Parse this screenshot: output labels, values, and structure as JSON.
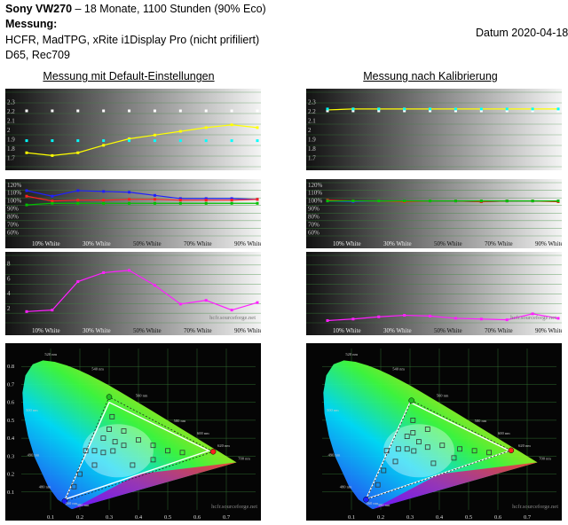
{
  "header": {
    "title_bold": "Sony VW270",
    "title_rest": " – 18 Monate, 1100 Stunden (90% Eco)",
    "subtitle": "Messung:",
    "line1": "HCFR, MadTPG, xRite i1Display Pro (nicht prifiliert)",
    "line2": "D65, Rec709",
    "date": "Datum 2020-04-18",
    "left_heading": "Messung mit Default-Einstellungen",
    "right_heading": "Messung nach Kalibrierung"
  },
  "colors": {
    "gamma": "#ffff00",
    "white_ref": "#ffffff",
    "cyan_ref": "#00ffff",
    "red": "#ff2020",
    "green": "#00c000",
    "blue": "#2020ff",
    "magenta": "#ff20ff",
    "grid": "#2e8b2e",
    "gamut": "#ffffff",
    "bg_dark": "#0a0a0a"
  },
  "chart_data": [
    {
      "id": "gamma-default",
      "type": "line",
      "x": [
        0,
        10,
        20,
        30,
        40,
        50,
        60,
        70,
        80,
        90
      ],
      "ylim": [
        1.6,
        2.4
      ],
      "yticks": [
        "1.7",
        "1.8",
        "1.9",
        "2",
        "2.1",
        "2.2",
        "2.3"
      ],
      "series": [
        {
          "color": "#ffff00",
          "values": [
            1.75,
            1.72,
            1.75,
            1.83,
            1.9,
            1.94,
            1.98,
            2.02,
            2.05,
            2.02
          ]
        },
        {
          "color": "#ffffff",
          "values": [
            2.2,
            2.2,
            2.2,
            2.2,
            2.2,
            2.2,
            2.2,
            2.2,
            2.2,
            2.2
          ],
          "dashed": true
        },
        {
          "color": "#00ffff",
          "values": [
            1.88,
            1.88,
            1.88,
            1.88,
            1.88,
            1.88,
            1.88,
            1.88,
            1.88,
            1.88
          ],
          "dashed": true
        }
      ]
    },
    {
      "id": "rgb-default",
      "type": "line",
      "x": [
        0,
        10,
        20,
        30,
        40,
        50,
        60,
        70,
        80,
        90
      ],
      "ylim": [
        55,
        122
      ],
      "yticks": [
        "60%",
        "70%",
        "80%",
        "90%",
        "100%",
        "110%",
        "120%"
      ],
      "xticks": [
        "10% White",
        "30% White",
        "50% White",
        "70% White",
        "90% White"
      ],
      "series": [
        {
          "color": "#2020ff",
          "values": [
            112,
            105,
            112,
            111,
            110,
            106,
            102,
            102,
            102,
            101
          ]
        },
        {
          "color": "#ff2020",
          "values": [
            105,
            99,
            100,
            100,
            101,
            101,
            100,
            100,
            100,
            101
          ]
        },
        {
          "color": "#00c000",
          "values": [
            94,
            96,
            96,
            96,
            96,
            96,
            96,
            96,
            96,
            96
          ]
        }
      ]
    },
    {
      "id": "deltae-default",
      "type": "line",
      "x": [
        0,
        10,
        20,
        30,
        40,
        50,
        60,
        70,
        80,
        90
      ],
      "ylim": [
        0,
        9
      ],
      "yticks": [
        "2",
        "4",
        "6",
        "8"
      ],
      "xticks": [
        "10% White",
        "30% White",
        "50% White",
        "70% White",
        "90% White"
      ],
      "series": [
        {
          "color": "#ff20ff",
          "values": [
            1.5,
            1.7,
            5.5,
            6.7,
            7,
            5,
            2.5,
            3,
            1.7,
            2.7
          ]
        }
      ],
      "watermark": "hcfr.sourceforge.net"
    },
    {
      "id": "gamma-calibrated",
      "type": "line",
      "x": [
        0,
        10,
        20,
        30,
        40,
        50,
        60,
        70,
        80,
        90
      ],
      "ylim": [
        1.6,
        2.4
      ],
      "yticks": [
        "1.7",
        "1.8",
        "1.9",
        "2",
        "2.1",
        "2.2",
        "2.3"
      ],
      "series": [
        {
          "color": "#ffff00",
          "values": [
            2.21,
            2.22,
            2.22,
            2.22,
            2.22,
            2.22,
            2.22,
            2.22,
            2.22,
            2.22
          ]
        },
        {
          "color": "#ffffff",
          "values": [
            2.2,
            2.2,
            2.2,
            2.2,
            2.2,
            2.2,
            2.2,
            2.2,
            2.2,
            2.2
          ],
          "dashed": true
        },
        {
          "color": "#00ffff",
          "values": [
            2.22,
            2.22,
            2.22,
            2.22,
            2.22,
            2.22,
            2.22,
            2.22,
            2.22,
            2.22
          ],
          "dashed": true
        }
      ]
    },
    {
      "id": "rgb-calibrated",
      "type": "line",
      "x": [
        0,
        10,
        20,
        30,
        40,
        50,
        60,
        70,
        80,
        90
      ],
      "ylim": [
        55,
        122
      ],
      "yticks": [
        "60%",
        "70%",
        "80%",
        "90%",
        "100%",
        "110%",
        "120%"
      ],
      "xticks": [
        "10% White",
        "30% White",
        "50% White",
        "70% White",
        "90% White"
      ],
      "series": [
        {
          "color": "#2020ff",
          "values": [
            99,
            98,
            99,
            99,
            99,
            99,
            98,
            99,
            99,
            99
          ]
        },
        {
          "color": "#ff2020",
          "values": [
            100,
            99,
            99,
            98,
            99,
            99,
            98,
            99,
            99,
            98
          ]
        },
        {
          "color": "#00c000",
          "values": [
            99,
            99,
            99,
            99,
            99,
            99,
            99,
            99,
            99,
            99
          ]
        }
      ]
    },
    {
      "id": "deltae-calibrated",
      "type": "line",
      "x": [
        0,
        10,
        20,
        30,
        40,
        50,
        60,
        70,
        80,
        90
      ],
      "ylim": [
        0,
        9
      ],
      "yticks": [],
      "xticks": [
        "10% White",
        "30% White",
        "50% White",
        "70% White",
        "90% White"
      ],
      "series": [
        {
          "color": "#ff20ff",
          "values": [
            0.3,
            0.5,
            0.8,
            1.0,
            0.9,
            0.6,
            0.5,
            0.4,
            1.2,
            0.6
          ]
        }
      ],
      "watermark": "hcfr.sourceforge.net"
    },
    {
      "id": "cie-default",
      "type": "scatter",
      "xlim": [
        0,
        0.8
      ],
      "ylim": [
        0,
        0.9
      ],
      "xticks": [
        "0.1",
        "0.2",
        "0.3",
        "0.4",
        "0.5",
        "0.6",
        "0.7"
      ],
      "yticks": [
        "0.1",
        "0.2",
        "0.3",
        "0.4",
        "0.5",
        "0.6",
        "0.7",
        "0.8"
      ],
      "wavelengths": [
        "380 nm",
        "460 nm",
        "480 nm",
        "490 nm",
        "500 nm",
        "520 nm",
        "540 nm",
        "560 nm",
        "580 nm",
        "600 nm",
        "620 nm",
        "700 nm"
      ],
      "gamut": [
        [
          0.64,
          0.33
        ],
        [
          0.3,
          0.6
        ],
        [
          0.15,
          0.06
        ]
      ],
      "measured_gamut": [
        [
          0.655,
          0.325
        ],
        [
          0.3,
          0.63
        ],
        [
          0.148,
          0.048
        ]
      ],
      "points": [
        [
          0.313,
          0.329
        ],
        [
          0.28,
          0.32
        ],
        [
          0.25,
          0.33
        ],
        [
          0.22,
          0.33
        ],
        [
          0.35,
          0.36
        ],
        [
          0.4,
          0.39
        ],
        [
          0.45,
          0.36
        ],
        [
          0.5,
          0.33
        ],
        [
          0.55,
          0.32
        ],
        [
          0.3,
          0.45
        ],
        [
          0.31,
          0.52
        ],
        [
          0.2,
          0.2
        ],
        [
          0.25,
          0.25
        ],
        [
          0.18,
          0.13
        ],
        [
          0.38,
          0.25
        ],
        [
          0.45,
          0.28
        ],
        [
          0.32,
          0.38
        ],
        [
          0.28,
          0.4
        ],
        [
          0.35,
          0.44
        ]
      ],
      "watermark": "hcfr.sourceforge.net"
    },
    {
      "id": "cie-calibrated",
      "type": "scatter",
      "xlim": [
        0,
        0.8
      ],
      "ylim": [
        0,
        0.9
      ],
      "xticks": [
        "0.1",
        "0.2",
        "0.3",
        "0.4",
        "0.5",
        "0.6",
        "0.7"
      ],
      "yticks": [],
      "wavelengths": [
        "380 nm",
        "460 nm",
        "480 nm",
        "490 nm",
        "500 nm",
        "520 nm",
        "540 nm",
        "560 nm",
        "580 nm",
        "600 nm",
        "620 nm",
        "700 nm"
      ],
      "gamut": [
        [
          0.64,
          0.33
        ],
        [
          0.3,
          0.6
        ],
        [
          0.15,
          0.06
        ]
      ],
      "measured_gamut": [
        [
          0.645,
          0.332
        ],
        [
          0.305,
          0.61
        ],
        [
          0.15,
          0.058
        ]
      ],
      "points": [
        [
          0.313,
          0.329
        ],
        [
          0.29,
          0.34
        ],
        [
          0.26,
          0.34
        ],
        [
          0.22,
          0.33
        ],
        [
          0.36,
          0.35
        ],
        [
          0.41,
          0.36
        ],
        [
          0.47,
          0.34
        ],
        [
          0.52,
          0.33
        ],
        [
          0.57,
          0.32
        ],
        [
          0.31,
          0.43
        ],
        [
          0.31,
          0.5
        ],
        [
          0.21,
          0.22
        ],
        [
          0.25,
          0.27
        ],
        [
          0.19,
          0.14
        ],
        [
          0.38,
          0.26
        ],
        [
          0.45,
          0.29
        ],
        [
          0.33,
          0.38
        ],
        [
          0.29,
          0.41
        ],
        [
          0.36,
          0.45
        ]
      ],
      "watermark": "hcfr.sourceforge.net"
    }
  ]
}
